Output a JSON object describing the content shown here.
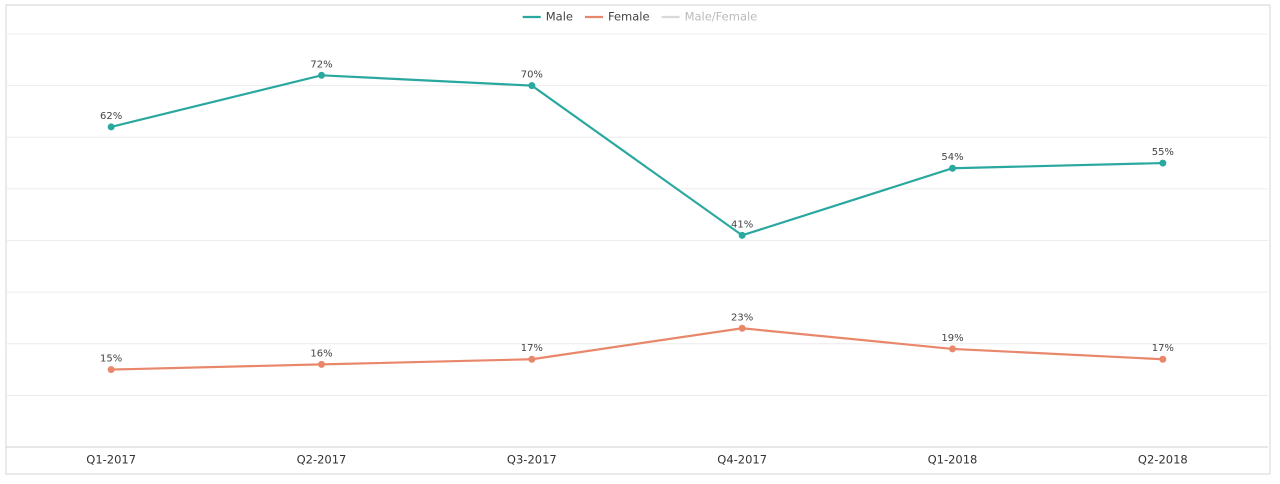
{
  "chart_data": {
    "type": "line",
    "categories": [
      "Q1-2017",
      "Q2-2017",
      "Q3-2017",
      "Q4-2017",
      "Q1-2018",
      "Q2-2018"
    ],
    "series": [
      {
        "name": "Male",
        "color": "#2aa89f",
        "values": [
          62,
          72,
          70,
          41,
          54,
          55
        ],
        "value_labels": [
          "62%",
          "72%",
          "70%",
          "41%",
          "54%",
          "55%"
        ]
      },
      {
        "name": "Female",
        "color": "#e8876a",
        "values": [
          15,
          16,
          17,
          23,
          19,
          17
        ],
        "value_labels": [
          "15%",
          "16%",
          "17%",
          "23%",
          "19%",
          "17%"
        ]
      },
      {
        "name": "Male/Female",
        "color": "#d9d9d9",
        "values": [
          null,
          null,
          null,
          null,
          null,
          null
        ]
      }
    ],
    "ylim": [
      0,
      80
    ],
    "yticks": [
      0,
      10,
      20,
      30,
      40,
      50,
      60,
      70,
      80
    ],
    "grid": true,
    "legend": "top"
  }
}
